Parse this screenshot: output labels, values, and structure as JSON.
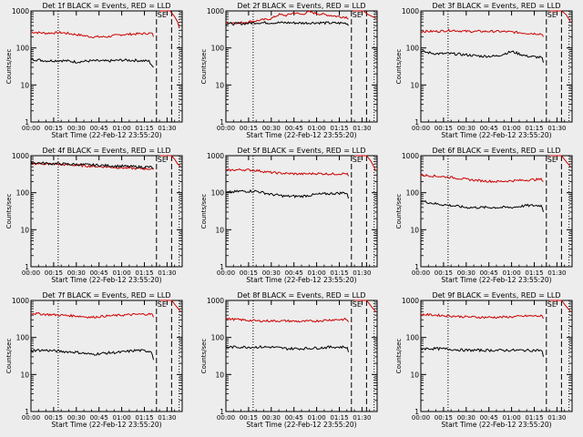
{
  "chart_data": {
    "type": "line",
    "layout": "3x3 grid of panels",
    "shared": {
      "ylabel": "Counts/sec",
      "xlabel": "Start Time (22-Feb-12 23:55:20)",
      "yscale": "log",
      "ylim": [
        1,
        1000
      ],
      "ytick_labels": [
        "1",
        "10",
        "100",
        "1000"
      ],
      "xlim_minutes": [
        0,
        100
      ],
      "xtick_labels": [
        "00:00",
        "00:15",
        "00:30",
        "00:45",
        "01:00",
        "01:15",
        "01:30"
      ],
      "series": [
        {
          "name": "Events",
          "color": "#000000"
        },
        {
          "name": "LLD",
          "color": "#cc0000"
        }
      ],
      "annotation": "SE",
      "markers": {
        "dotted_minutes": [
          18,
          98
        ],
        "dashed_minutes": [
          83,
          93
        ]
      }
    },
    "panels": [
      {
        "title": "Det 1f BLACK = Events, RED = LLD",
        "events": [
          [
            0,
            50
          ],
          [
            10,
            45
          ],
          [
            20,
            46
          ],
          [
            30,
            42
          ],
          [
            40,
            45
          ],
          [
            50,
            44
          ],
          [
            60,
            47
          ],
          [
            70,
            46
          ],
          [
            78,
            44
          ],
          [
            81,
            30
          ]
        ],
        "lld": [
          [
            0,
            270
          ],
          [
            10,
            250
          ],
          [
            20,
            260
          ],
          [
            30,
            230
          ],
          [
            40,
            200
          ],
          [
            50,
            200
          ],
          [
            60,
            230
          ],
          [
            70,
            240
          ],
          [
            80,
            250
          ],
          [
            81,
            200
          ]
        ],
        "tail": [
          [
            85,
            1000
          ],
          [
            88,
            1000
          ],
          [
            92,
            1000
          ],
          [
            95,
            700
          ],
          [
            97,
            500
          ],
          [
            98,
            350
          ]
        ]
      },
      {
        "title": "Det 2f BLACK = Events, RED = LLD",
        "events": [
          [
            0,
            450
          ],
          [
            10,
            450
          ],
          [
            20,
            480
          ],
          [
            30,
            480
          ],
          [
            40,
            480
          ],
          [
            50,
            470
          ],
          [
            60,
            480
          ],
          [
            70,
            470
          ],
          [
            80,
            470
          ],
          [
            81,
            400
          ]
        ],
        "lld": [
          [
            0,
            480
          ],
          [
            10,
            480
          ],
          [
            20,
            540
          ],
          [
            30,
            620
          ],
          [
            35,
            800
          ],
          [
            40,
            750
          ],
          [
            45,
            900
          ],
          [
            50,
            800
          ],
          [
            55,
            950
          ],
          [
            60,
            850
          ],
          [
            65,
            800
          ],
          [
            70,
            750
          ],
          [
            75,
            700
          ],
          [
            80,
            680
          ],
          [
            81,
            600
          ]
        ],
        "tail": [
          [
            84,
            1000
          ],
          [
            88,
            1000
          ],
          [
            91,
            1000
          ],
          [
            94,
            800
          ],
          [
            97,
            700
          ],
          [
            99,
            650
          ]
        ]
      },
      {
        "title": "Det 3f BLACK = Events, RED = LLD",
        "events": [
          [
            0,
            80
          ],
          [
            10,
            70
          ],
          [
            20,
            70
          ],
          [
            30,
            65
          ],
          [
            40,
            60
          ],
          [
            50,
            60
          ],
          [
            60,
            80
          ],
          [
            70,
            60
          ],
          [
            80,
            55
          ],
          [
            81,
            40
          ]
        ],
        "lld": [
          [
            0,
            280
          ],
          [
            10,
            280
          ],
          [
            20,
            300
          ],
          [
            30,
            280
          ],
          [
            40,
            280
          ],
          [
            50,
            280
          ],
          [
            60,
            270
          ],
          [
            70,
            250
          ],
          [
            80,
            240
          ],
          [
            81,
            200
          ]
        ],
        "tail": [
          [
            85,
            1000
          ],
          [
            89,
            1000
          ],
          [
            93,
            1000
          ],
          [
            96,
            800
          ],
          [
            99,
            500
          ]
        ]
      },
      {
        "title": "Det 4f BLACK = Events, RED = LLD",
        "events": [
          [
            0,
            650
          ],
          [
            10,
            620
          ],
          [
            20,
            600
          ],
          [
            30,
            580
          ],
          [
            40,
            560
          ],
          [
            50,
            540
          ],
          [
            60,
            520
          ],
          [
            70,
            500
          ],
          [
            80,
            490
          ],
          [
            81,
            450
          ]
        ],
        "lld": [
          [
            0,
            620
          ],
          [
            10,
            600
          ],
          [
            20,
            580
          ],
          [
            30,
            550
          ],
          [
            40,
            520
          ],
          [
            50,
            500
          ],
          [
            60,
            470
          ],
          [
            70,
            450
          ],
          [
            80,
            440
          ],
          [
            81,
            420
          ]
        ],
        "tail": [
          [
            85,
            1000
          ],
          [
            88,
            1000
          ],
          [
            90,
            1000
          ],
          [
            93,
            1000
          ],
          [
            95,
            800
          ],
          [
            97,
            600
          ],
          [
            99,
            500
          ]
        ]
      },
      {
        "title": "Det 5f BLACK = Events, RED = LLD",
        "events": [
          [
            0,
            100
          ],
          [
            10,
            110
          ],
          [
            20,
            110
          ],
          [
            30,
            90
          ],
          [
            40,
            80
          ],
          [
            50,
            80
          ],
          [
            60,
            90
          ],
          [
            70,
            95
          ],
          [
            80,
            100
          ],
          [
            81,
            70
          ]
        ],
        "lld": [
          [
            0,
            400
          ],
          [
            10,
            420
          ],
          [
            20,
            400
          ],
          [
            30,
            350
          ],
          [
            40,
            330
          ],
          [
            50,
            320
          ],
          [
            60,
            330
          ],
          [
            70,
            320
          ],
          [
            80,
            330
          ],
          [
            81,
            280
          ]
        ],
        "tail": [
          [
            85,
            1000
          ],
          [
            89,
            1000
          ],
          [
            93,
            1000
          ],
          [
            96,
            700
          ],
          [
            99,
            400
          ]
        ]
      },
      {
        "title": "Det 6f BLACK = Events, RED = LLD",
        "events": [
          [
            0,
            60
          ],
          [
            10,
            50
          ],
          [
            20,
            45
          ],
          [
            30,
            40
          ],
          [
            40,
            40
          ],
          [
            50,
            40
          ],
          [
            60,
            40
          ],
          [
            70,
            45
          ],
          [
            80,
            45
          ],
          [
            81,
            30
          ]
        ],
        "lld": [
          [
            0,
            300
          ],
          [
            10,
            280
          ],
          [
            20,
            260
          ],
          [
            30,
            230
          ],
          [
            40,
            210
          ],
          [
            50,
            200
          ],
          [
            60,
            210
          ],
          [
            70,
            220
          ],
          [
            80,
            230
          ],
          [
            81,
            200
          ]
        ],
        "tail": [
          [
            85,
            1000
          ],
          [
            89,
            1000
          ],
          [
            93,
            1000
          ],
          [
            96,
            700
          ],
          [
            99,
            500
          ]
        ]
      },
      {
        "title": "Det 7f BLACK = Events, RED = LLD",
        "events": [
          [
            0,
            45
          ],
          [
            10,
            45
          ],
          [
            20,
            42
          ],
          [
            30,
            40
          ],
          [
            40,
            35
          ],
          [
            50,
            38
          ],
          [
            60,
            40
          ],
          [
            70,
            45
          ],
          [
            80,
            42
          ],
          [
            81,
            25
          ]
        ],
        "lld": [
          [
            0,
            450
          ],
          [
            10,
            420
          ],
          [
            20,
            400
          ],
          [
            30,
            380
          ],
          [
            40,
            350
          ],
          [
            50,
            380
          ],
          [
            60,
            400
          ],
          [
            70,
            420
          ],
          [
            80,
            430
          ],
          [
            81,
            350
          ]
        ],
        "tail": [
          [
            85,
            1000
          ],
          [
            89,
            1000
          ],
          [
            93,
            1000
          ],
          [
            96,
            700
          ],
          [
            99,
            500
          ]
        ]
      },
      {
        "title": "Det 8f BLACK = Events, RED = LLD",
        "events": [
          [
            0,
            55
          ],
          [
            10,
            55
          ],
          [
            20,
            55
          ],
          [
            30,
            55
          ],
          [
            40,
            50
          ],
          [
            50,
            50
          ],
          [
            60,
            52
          ],
          [
            70,
            55
          ],
          [
            80,
            55
          ],
          [
            81,
            40
          ]
        ],
        "lld": [
          [
            0,
            320
          ],
          [
            10,
            300
          ],
          [
            20,
            280
          ],
          [
            30,
            280
          ],
          [
            40,
            280
          ],
          [
            50,
            270
          ],
          [
            60,
            280
          ],
          [
            70,
            300
          ],
          [
            80,
            310
          ],
          [
            81,
            260
          ]
        ],
        "tail": [
          [
            85,
            1000
          ],
          [
            89,
            1000
          ],
          [
            93,
            1000
          ],
          [
            96,
            700
          ],
          [
            99,
            500
          ]
        ]
      },
      {
        "title": "Det 9f BLACK = Events, RED = LLD",
        "events": [
          [
            0,
            50
          ],
          [
            10,
            50
          ],
          [
            20,
            48
          ],
          [
            30,
            45
          ],
          [
            40,
            45
          ],
          [
            50,
            45
          ],
          [
            60,
            45
          ],
          [
            70,
            45
          ],
          [
            80,
            45
          ],
          [
            81,
            30
          ]
        ],
        "lld": [
          [
            0,
            420
          ],
          [
            10,
            400
          ],
          [
            20,
            380
          ],
          [
            30,
            360
          ],
          [
            40,
            350
          ],
          [
            50,
            350
          ],
          [
            60,
            360
          ],
          [
            70,
            380
          ],
          [
            80,
            380
          ],
          [
            81,
            320
          ]
        ],
        "tail": [
          [
            85,
            1000
          ],
          [
            89,
            1000
          ],
          [
            93,
            1000
          ],
          [
            96,
            700
          ],
          [
            99,
            500
          ]
        ]
      }
    ]
  }
}
